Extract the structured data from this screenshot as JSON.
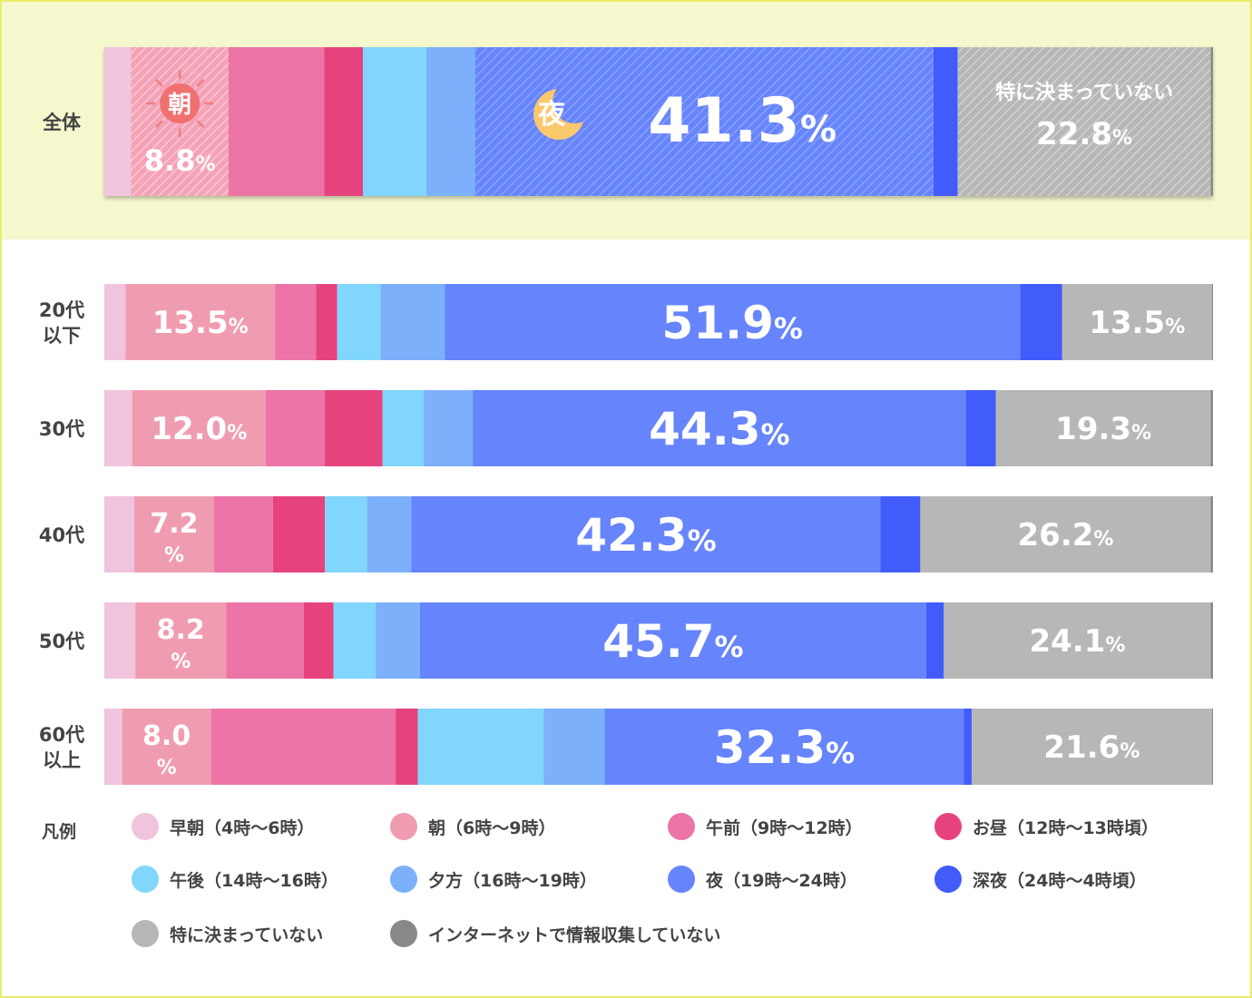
{
  "chart_data": {
    "type": "bar",
    "orientation": "horizontal-stacked-100",
    "colors": {
      "early_morning": "#f0c4dc",
      "morning": "#f09cb0",
      "forenoon": "#ec74a6",
      "noon": "#e6427e",
      "afternoon": "#80d6fc",
      "evening": "#7cb0fa",
      "night": "#6684fc",
      "late_night": "#425cfc",
      "not_fixed": "#b7b7b7",
      "no_internet": "#888888"
    },
    "series_keys": [
      "early_morning",
      "morning",
      "forenoon",
      "noon",
      "afternoon",
      "evening",
      "night",
      "late_night",
      "not_fixed",
      "no_internet"
    ],
    "series": [
      {
        "key": "early_morning",
        "name": "早朝（4時〜6時）",
        "values": [
          2.4,
          1.9,
          2.5,
          2.7,
          2.8,
          1.6
        ]
      },
      {
        "key": "morning",
        "name": "朝（6時〜9時）",
        "values": [
          8.8,
          13.5,
          12.0,
          7.2,
          8.2,
          8.0
        ]
      },
      {
        "key": "forenoon",
        "name": "午前（9時〜12時）",
        "values": [
          8.6,
          3.7,
          5.3,
          5.3,
          7.0,
          16.6
        ]
      },
      {
        "key": "noon",
        "name": "お昼（12時〜13時頃）",
        "values": [
          3.5,
          1.9,
          5.2,
          4.7,
          2.7,
          2.0
        ]
      },
      {
        "key": "afternoon",
        "name": "午後（14時〜16時）",
        "values": [
          5.7,
          3.9,
          3.7,
          3.8,
          3.8,
          11.3
        ]
      },
      {
        "key": "evening",
        "name": "夕方（16時〜19時）",
        "values": [
          4.4,
          5.8,
          4.4,
          4.0,
          4.0,
          5.5
        ]
      },
      {
        "key": "night",
        "name": "夜（19時〜24時）",
        "values": [
          41.3,
          51.9,
          44.3,
          42.3,
          45.7,
          32.3
        ]
      },
      {
        "key": "late_night",
        "name": "深夜（24時〜4時頃）",
        "values": [
          2.2,
          3.8,
          2.7,
          3.6,
          1.6,
          0.7
        ]
      },
      {
        "key": "not_fixed",
        "name": "特に決まっていない",
        "values": [
          22.8,
          13.5,
          19.3,
          26.2,
          24.1,
          21.6
        ]
      },
      {
        "key": "no_internet",
        "name": "インターネットで情報収集していない",
        "values": [
          0.2,
          0.1,
          0.2,
          0.2,
          0.2,
          0.1
        ]
      }
    ],
    "rows": [
      {
        "label_lines": [
          "全体"
        ],
        "overall": true,
        "labels": {
          "morning": {
            "badge": "朝",
            "value": "8.8",
            "unit": "%"
          },
          "night": {
            "badge": "夜",
            "value": "41.3",
            "unit": "%"
          },
          "not_fixed": {
            "caption": "特に決まっていない",
            "value": "22.8",
            "unit": "%"
          }
        }
      },
      {
        "label_lines": [
          "20代",
          "以下"
        ],
        "labels": {
          "morning": {
            "value": "13.5",
            "unit": "%"
          },
          "night": {
            "value": "51.9",
            "unit": "%"
          },
          "not_fixed": {
            "value": "13.5",
            "unit": "%"
          }
        }
      },
      {
        "label_lines": [
          "30代"
        ],
        "labels": {
          "morning": {
            "value": "12.0",
            "unit": "%"
          },
          "night": {
            "value": "44.3",
            "unit": "%"
          },
          "not_fixed": {
            "value": "19.3",
            "unit": "%"
          }
        }
      },
      {
        "label_lines": [
          "40代"
        ],
        "labels": {
          "morning": {
            "value": "7.2",
            "unit": "%",
            "stacked": true
          },
          "night": {
            "value": "42.3",
            "unit": "%"
          },
          "not_fixed": {
            "value": "26.2",
            "unit": "%"
          }
        }
      },
      {
        "label_lines": [
          "50代"
        ],
        "labels": {
          "morning": {
            "value": "8.2",
            "unit": "%",
            "stacked": true
          },
          "night": {
            "value": "45.7",
            "unit": "%"
          },
          "not_fixed": {
            "value": "24.1",
            "unit": "%"
          }
        }
      },
      {
        "label_lines": [
          "60代",
          "以上"
        ],
        "labels": {
          "morning": {
            "value": "8.0",
            "unit": "%",
            "stacked": true
          },
          "night": {
            "value": "32.3",
            "unit": "%"
          },
          "not_fixed": {
            "value": "21.6",
            "unit": "%"
          }
        }
      }
    ]
  },
  "legend": {
    "title": "凡例",
    "items": [
      {
        "key": "early_morning",
        "label": "早朝（4時〜6時）"
      },
      {
        "key": "morning",
        "label": "朝（6時〜9時）"
      },
      {
        "key": "forenoon",
        "label": "午前（9時〜12時）"
      },
      {
        "key": "noon",
        "label": "お昼（12時〜13時頃）"
      },
      {
        "key": "afternoon",
        "label": "午後（14時〜16時）"
      },
      {
        "key": "evening",
        "label": "夕方（16時〜19時）"
      },
      {
        "key": "night",
        "label": "夜（19時〜24時）"
      },
      {
        "key": "late_night",
        "label": "深夜（24時〜4時頃）"
      },
      {
        "key": "not_fixed",
        "label": "特に決まっていない"
      },
      {
        "key": "no_internet",
        "label": "インターネットで情報収集していない"
      }
    ]
  }
}
